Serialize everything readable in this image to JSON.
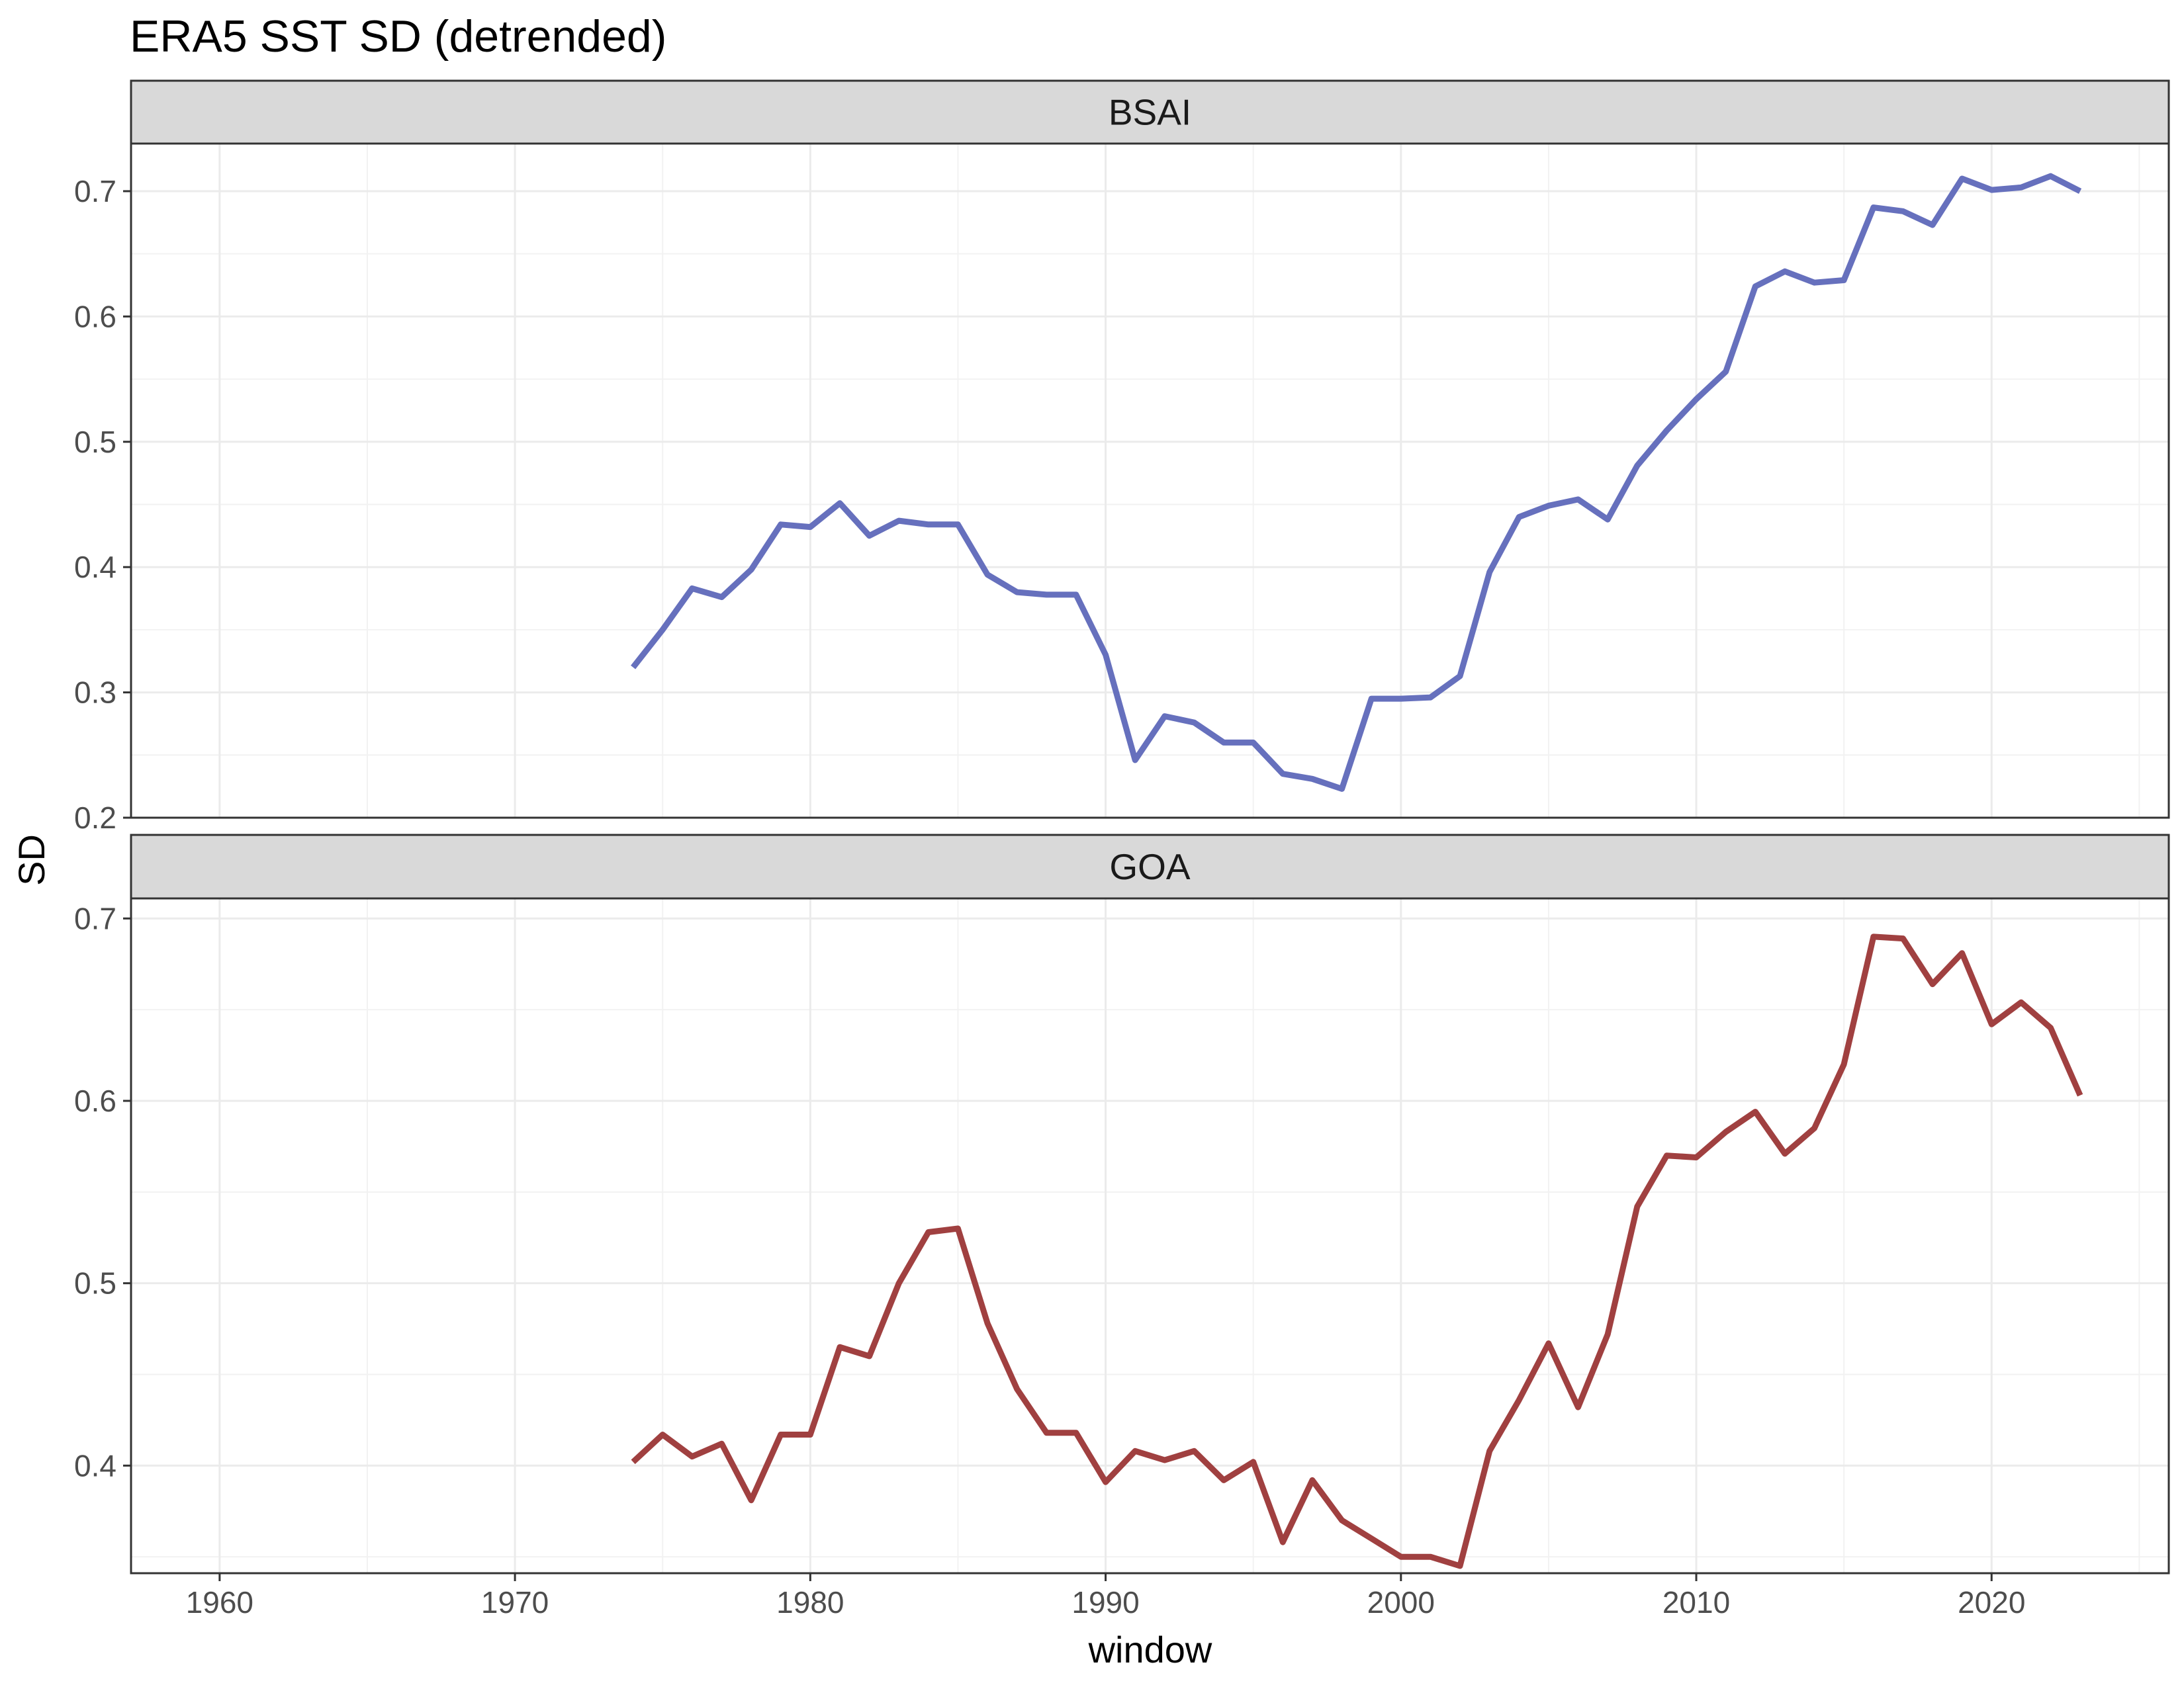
{
  "chart_data": {
    "type": "line",
    "title": "ERA5 SST SD (detrended)",
    "xlabel": "window",
    "ylabel": "SD",
    "xlim": [
      1957,
      2026
    ],
    "x_ticks": [
      1960,
      1970,
      1980,
      1990,
      2000,
      2010,
      2020
    ],
    "x": [
      1974,
      1975,
      1976,
      1977,
      1978,
      1979,
      1980,
      1981,
      1982,
      1983,
      1984,
      1985,
      1986,
      1987,
      1988,
      1989,
      1990,
      1991,
      1992,
      1993,
      1994,
      1995,
      1996,
      1997,
      1998,
      1999,
      2000,
      2001,
      2002,
      2003,
      2004,
      2005,
      2006,
      2007,
      2008,
      2009,
      2010,
      2011,
      2012,
      2013,
      2014,
      2015,
      2016,
      2017,
      2018,
      2019,
      2020,
      2021,
      2022,
      2023
    ],
    "grid": true,
    "legend": "none",
    "panels": [
      {
        "name": "BSAI",
        "color": "#6670bd",
        "ylim": [
          0.2,
          0.738
        ],
        "y_ticks": [
          "0.2",
          "0.3",
          "0.4",
          "0.5",
          "0.6",
          "0.7"
        ],
        "values": [
          0.32,
          0.35,
          0.383,
          0.376,
          0.398,
          0.434,
          0.432,
          0.451,
          0.425,
          0.437,
          0.434,
          0.434,
          0.394,
          0.38,
          0.378,
          0.378,
          0.33,
          0.246,
          0.281,
          0.276,
          0.26,
          0.26,
          0.235,
          0.231,
          0.223,
          0.295,
          0.295,
          0.296,
          0.313,
          0.396,
          0.44,
          0.449,
          0.454,
          0.438,
          0.481,
          0.509,
          0.534,
          0.556,
          0.624,
          0.636,
          0.627,
          0.629,
          0.687,
          0.684,
          0.673,
          0.71,
          0.701,
          0.703,
          0.712,
          0.7
        ]
      },
      {
        "name": "GOA",
        "color": "#a04040",
        "ylim": [
          0.341,
          0.711
        ],
        "y_ticks": [
          "0.4",
          "0.5",
          "0.6",
          "0.7"
        ],
        "values": [
          0.402,
          0.417,
          0.405,
          0.412,
          0.381,
          0.417,
          0.417,
          0.465,
          0.46,
          0.5,
          0.528,
          0.53,
          0.478,
          0.442,
          0.418,
          0.418,
          0.391,
          0.408,
          0.403,
          0.408,
          0.392,
          0.402,
          0.358,
          0.392,
          0.37,
          0.36,
          0.35,
          0.35,
          0.345,
          0.408,
          0.436,
          0.467,
          0.432,
          0.472,
          0.542,
          0.57,
          0.569,
          0.583,
          0.594,
          0.571,
          0.585,
          0.62,
          0.69,
          0.689,
          0.664,
          0.681,
          0.642,
          0.654,
          0.64,
          0.603
        ]
      }
    ]
  }
}
